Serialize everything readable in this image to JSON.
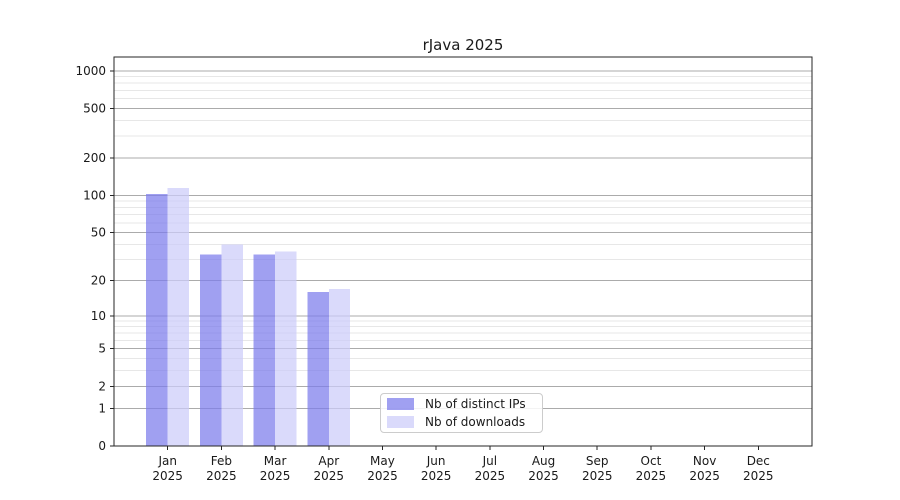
{
  "chart_data": {
    "type": "bar",
    "title": "rJava 2025",
    "categories": [
      "Jan",
      "Feb",
      "Mar",
      "Apr",
      "May",
      "Jun",
      "Jul",
      "Aug",
      "Sep",
      "Oct",
      "Nov",
      "Dec"
    ],
    "category_year": "2025",
    "series": [
      {
        "name": "Nb of distinct IPs",
        "color": "#7b7bec",
        "fill_alpha": 0.72,
        "values": [
          103,
          33,
          33,
          16,
          0,
          0,
          0,
          0,
          0,
          0,
          0,
          0
        ]
      },
      {
        "name": "Nb of downloads",
        "color": "#ccccfa",
        "fill_alpha": 0.72,
        "values": [
          115,
          40,
          35,
          17,
          0,
          0,
          0,
          0,
          0,
          0,
          0,
          0
        ]
      }
    ],
    "xlabel": "",
    "ylabel": "",
    "y_axis": {
      "scale": "log10(1+x)",
      "ticks": [
        0,
        1,
        2,
        5,
        10,
        20,
        50,
        100,
        200,
        500,
        1000
      ],
      "ylim": [
        0,
        1290
      ]
    },
    "grid": {
      "major": true,
      "minor": true
    },
    "legend_position": "lower center-left inside plot"
  },
  "colors": {
    "background": "#ffffff",
    "spine": "#262626",
    "major_grid": "#ababab",
    "minor_grid": "#e7e7e7",
    "tick_text": "#1a1a1a"
  }
}
